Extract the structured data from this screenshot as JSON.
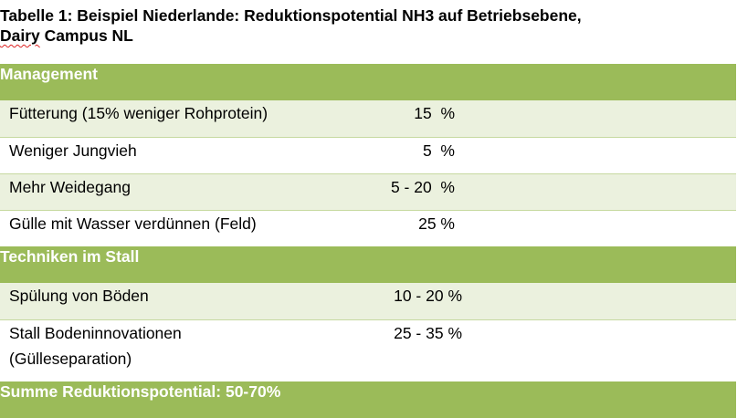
{
  "title_line1": "Tabelle 1: Beispiel Niederlande: Reduktionspotential NH3 auf Betriebsebene,",
  "title_line2_squiggle": "Dairy",
  "title_line2_rest": " Campus NL",
  "table": {
    "section1": "Management",
    "rows1": [
      {
        "label": "Fütterung (15% weniger Rohprotein)",
        "value": "15  %"
      },
      {
        "label": "Weniger Jungvieh",
        "value": "5  %"
      },
      {
        "label": "Mehr Weidegang",
        "value": "5 - 20  %"
      },
      {
        "label": "Gülle mit Wasser verdünnen (Feld)",
        "value": "25 %"
      }
    ],
    "section2": "Techniken im Stall",
    "rows2": [
      {
        "label": "Spülung von Böden",
        "value": "10 - 20 %"
      },
      {
        "label_line1": "Stall Bodeninnovationen",
        "label_line2": "(Gülleseparation)",
        "value": "25 - 35 %"
      }
    ],
    "summary": "Summe Reduktionspotential: 50-70%"
  },
  "colors": {
    "header_green": "#9bbb59",
    "row_tint": "#ebf1de"
  }
}
